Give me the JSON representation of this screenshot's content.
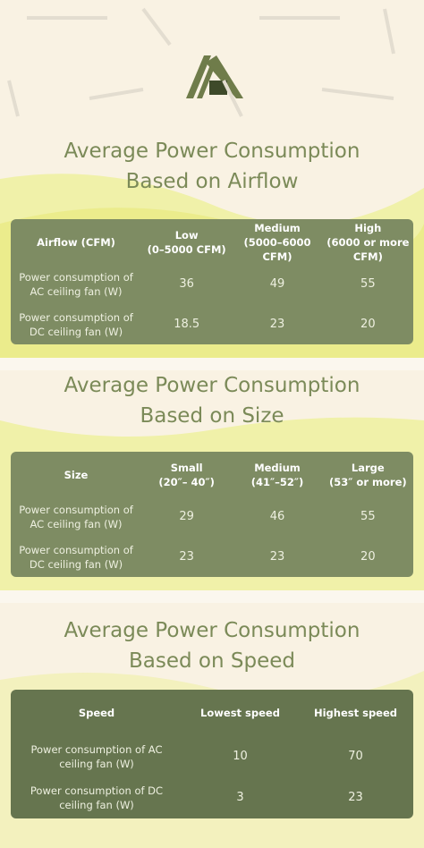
{
  "sections": [
    {
      "title_lines": [
        "Average Power Consumption",
        "Based on Airflow"
      ],
      "table": {
        "header": [
          {
            "lines": [
              "Airflow (CFM)"
            ]
          },
          {
            "lines": [
              "Low",
              "(0–5000 CFM)"
            ]
          },
          {
            "lines": [
              "Medium",
              "(5000–6000 CFM)"
            ]
          },
          {
            "lines": [
              "High",
              "(6000 or more CFM)"
            ]
          }
        ],
        "rows": [
          [
            "Power consumption of AC ceiling fan (W)",
            36,
            49,
            55
          ],
          [
            "Power consumption of DC ceiling fan (W)",
            18.5,
            23,
            20
          ]
        ]
      }
    },
    {
      "title_lines": [
        "Average Power Consumption",
        "Based on Size"
      ],
      "table": {
        "header": [
          {
            "lines": [
              "Size"
            ]
          },
          {
            "lines": [
              "Small",
              "(20″– 40″)"
            ]
          },
          {
            "lines": [
              "Medium",
              "(41″–52″)"
            ]
          },
          {
            "lines": [
              "Large",
              "(53″ or more)"
            ]
          }
        ],
        "rows": [
          [
            "Power consumption of AC ceiling fan (W)",
            29,
            46,
            55
          ],
          [
            "Power consumption of DC ceiling fan (W)",
            23,
            23,
            20
          ]
        ]
      }
    },
    {
      "title_lines": [
        "Average Power Consumption",
        "Based on Speed"
      ],
      "table": {
        "header": [
          {
            "lines": [
              "Speed"
            ]
          },
          {
            "lines": [
              "Lowest speed"
            ]
          },
          {
            "lines": [
              "Highest speed"
            ]
          }
        ],
        "rows": [
          [
            "Power consumption of AC ceiling fan (W)",
            10,
            70
          ],
          [
            "Power consumption of DC ceiling fan (W)",
            3,
            23
          ]
        ]
      }
    }
  ]
}
